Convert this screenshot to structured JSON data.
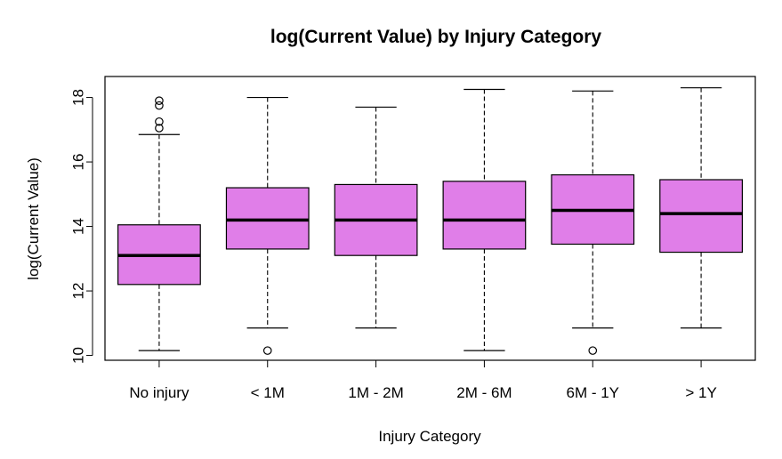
{
  "chart_data": {
    "type": "boxplot",
    "title": "log(Current Value) by Injury Category",
    "xlabel": "Injury Category",
    "ylabel": "log(Current Value)",
    "ylim": [
      9.85,
      18.65
    ],
    "yticks": [
      10,
      12,
      14,
      16,
      18
    ],
    "grid": false,
    "box_color": "#E07EE8",
    "outline_color": "#000000",
    "categories": [
      "No injury",
      "< 1M",
      "1M - 2M",
      "2M - 6M",
      "6M - 1Y",
      "> 1Y"
    ],
    "boxes": [
      {
        "category": "No injury",
        "whisker_low": 10.15,
        "q1": 12.2,
        "median": 13.1,
        "q3": 14.05,
        "whisker_high": 16.85,
        "outliers": [
          17.05,
          17.25,
          17.75,
          17.9
        ]
      },
      {
        "category": "< 1M",
        "whisker_low": 10.85,
        "q1": 13.3,
        "median": 14.2,
        "q3": 15.2,
        "whisker_high": 18.0,
        "outliers": [
          10.15
        ]
      },
      {
        "category": "1M - 2M",
        "whisker_low": 10.85,
        "q1": 13.1,
        "median": 14.2,
        "q3": 15.3,
        "whisker_high": 17.7,
        "outliers": []
      },
      {
        "category": "2M - 6M",
        "whisker_low": 10.15,
        "q1": 13.3,
        "median": 14.2,
        "q3": 15.4,
        "whisker_high": 18.25,
        "outliers": []
      },
      {
        "category": "6M - 1Y",
        "whisker_low": 10.85,
        "q1": 13.45,
        "median": 14.5,
        "q3": 15.6,
        "whisker_high": 18.2,
        "outliers": [
          10.15
        ]
      },
      {
        "category": "> 1Y",
        "whisker_low": 10.85,
        "q1": 13.2,
        "median": 14.4,
        "q3": 15.45,
        "whisker_high": 18.3,
        "outliers": []
      }
    ]
  }
}
